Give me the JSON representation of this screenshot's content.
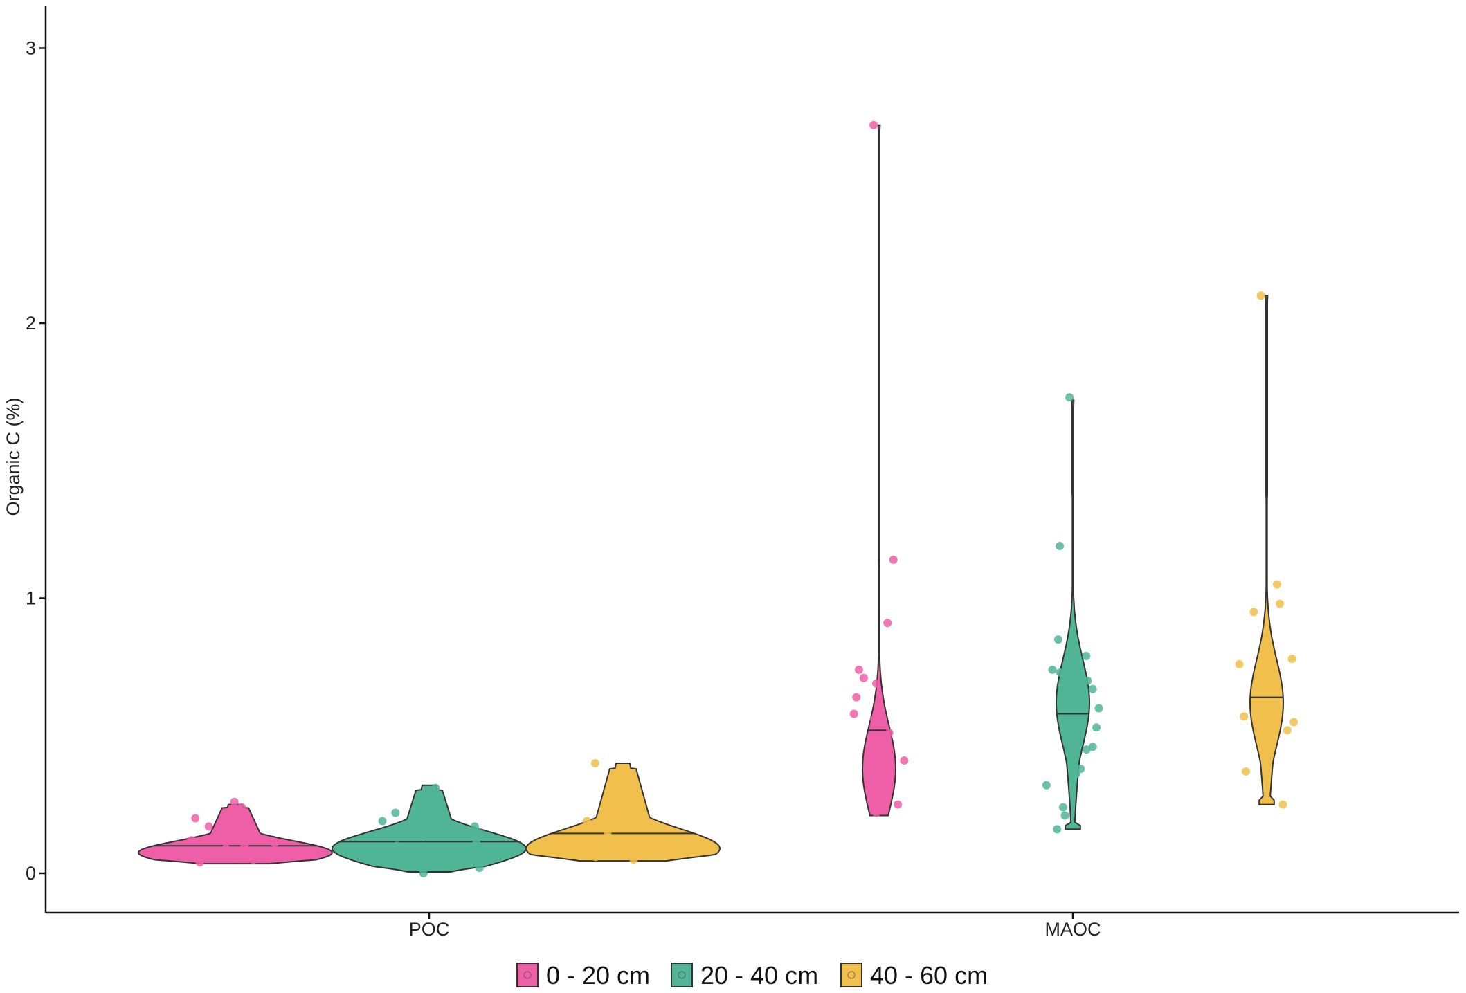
{
  "chart_data": {
    "type": "violin",
    "ylabel": "Organic C (%)",
    "xlabel": "",
    "ylim": [
      -0.13,
      3.15
    ],
    "yticks": [
      0,
      1,
      2,
      3
    ],
    "categories": [
      "POC",
      "MAOC"
    ],
    "grid": false,
    "legend": {
      "placement": "bottom",
      "entries": [
        "0 - 20 cm",
        "20 - 40 cm",
        "40 - 60 cm"
      ]
    },
    "colors": {
      "0 - 20 cm": "#ef5fa7",
      "20 - 40 cm": "#4fb594",
      "40 - 60 cm": "#f1c04c"
    },
    "series": [
      {
        "name": "0 - 20 cm",
        "groups": {
          "POC": {
            "min": 0.035,
            "max": 0.25,
            "median": 0.1,
            "peak": 0.075,
            "points": [
              0.26,
              0.24,
              0.2,
              0.17,
              0.15,
              0.13,
              0.12,
              0.11,
              0.1,
              0.09,
              0.08,
              0.08,
              0.07,
              0.07,
              0.06,
              0.06,
              0.05,
              0.04
            ]
          },
          "MAOC": {
            "min": 0.21,
            "max": 2.72,
            "median": 0.52,
            "peak": 0.38,
            "points": [
              2.72,
              1.14,
              0.91,
              0.74,
              0.71,
              0.69,
              0.64,
              0.58,
              0.56,
              0.51,
              0.48,
              0.41,
              0.38,
              0.32,
              0.31,
              0.29,
              0.25,
              0.22
            ]
          }
        }
      },
      {
        "name": "20 - 40 cm",
        "groups": {
          "POC": {
            "min": 0.005,
            "max": 0.32,
            "median": 0.115,
            "peak": 0.09,
            "points": [
              0.31,
              0.26,
              0.22,
              0.19,
              0.17,
              0.15,
              0.14,
              0.13,
              0.11,
              0.1,
              0.08,
              0.07,
              0.06,
              0.05,
              0.04,
              0.02,
              0.0
            ]
          },
          "MAOC": {
            "min": 0.16,
            "max": 1.72,
            "median": 0.58,
            "peak": 0.62,
            "points": [
              1.73,
              1.19,
              0.85,
              0.79,
              0.74,
              0.73,
              0.7,
              0.67,
              0.6,
              0.53,
              0.46,
              0.45,
              0.38,
              0.36,
              0.32,
              0.24,
              0.21,
              0.16
            ]
          }
        }
      },
      {
        "name": "40 - 60 cm",
        "groups": {
          "POC": {
            "min": 0.045,
            "max": 0.4,
            "median": 0.145,
            "peak": 0.09,
            "points": [
              0.4,
              0.3,
              0.22,
              0.19,
              0.17,
              0.15,
              0.13,
              0.12,
              0.1,
              0.09,
              0.08,
              0.07,
              0.06,
              0.05
            ]
          },
          "MAOC": {
            "min": 0.25,
            "max": 2.1,
            "median": 0.64,
            "peak": 0.62,
            "points": [
              2.1,
              1.05,
              0.98,
              0.95,
              0.78,
              0.76,
              0.72,
              0.67,
              0.6,
              0.57,
              0.55,
              0.53,
              0.52,
              0.48,
              0.47,
              0.37,
              0.25
            ]
          }
        }
      }
    ]
  }
}
